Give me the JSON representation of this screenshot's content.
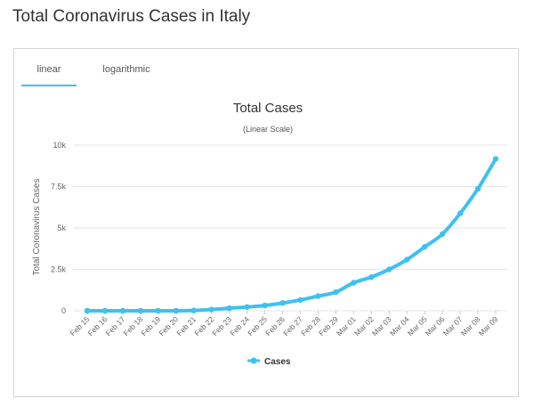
{
  "page": {
    "title": "Total Coronavirus Cases in Italy"
  },
  "tabs": [
    {
      "label": "linear",
      "active": true
    },
    {
      "label": "logarithmic",
      "active": false
    }
  ],
  "colors": {
    "accent": "#3ec1f0",
    "series": "#3ec1f0",
    "grid": "#e6e6e6"
  },
  "chart_data": {
    "type": "line",
    "title": "Total Cases",
    "subtitle": "(Linear Scale)",
    "xlabel": "",
    "ylabel": "Total Coronavirus Cases",
    "categories": [
      "Feb 15",
      "Feb 16",
      "Feb 17",
      "Feb 18",
      "Feb 19",
      "Feb 20",
      "Feb 21",
      "Feb 22",
      "Feb 23",
      "Feb 24",
      "Feb 25",
      "Feb 26",
      "Feb 27",
      "Feb 28",
      "Feb 29",
      "Mar 01",
      "Mar 02",
      "Mar 03",
      "Mar 04",
      "Mar 05",
      "Mar 06",
      "Mar 07",
      "Mar 08",
      "Mar 09"
    ],
    "series": [
      {
        "name": "Cases",
        "values": [
          3,
          3,
          3,
          3,
          3,
          3,
          20,
          79,
          157,
          229,
          323,
          470,
          655,
          889,
          1128,
          1694,
          2036,
          2502,
          3089,
          3858,
          4636,
          5883,
          7375,
          9172
        ]
      }
    ],
    "yticks": [
      0,
      2500,
      5000,
      7500,
      10000
    ],
    "ytick_labels": [
      "0",
      "2.5k",
      "5k",
      "7.5k",
      "10k"
    ],
    "ylim": [
      0,
      10000
    ],
    "grid": true,
    "legend": "bottom-center"
  }
}
